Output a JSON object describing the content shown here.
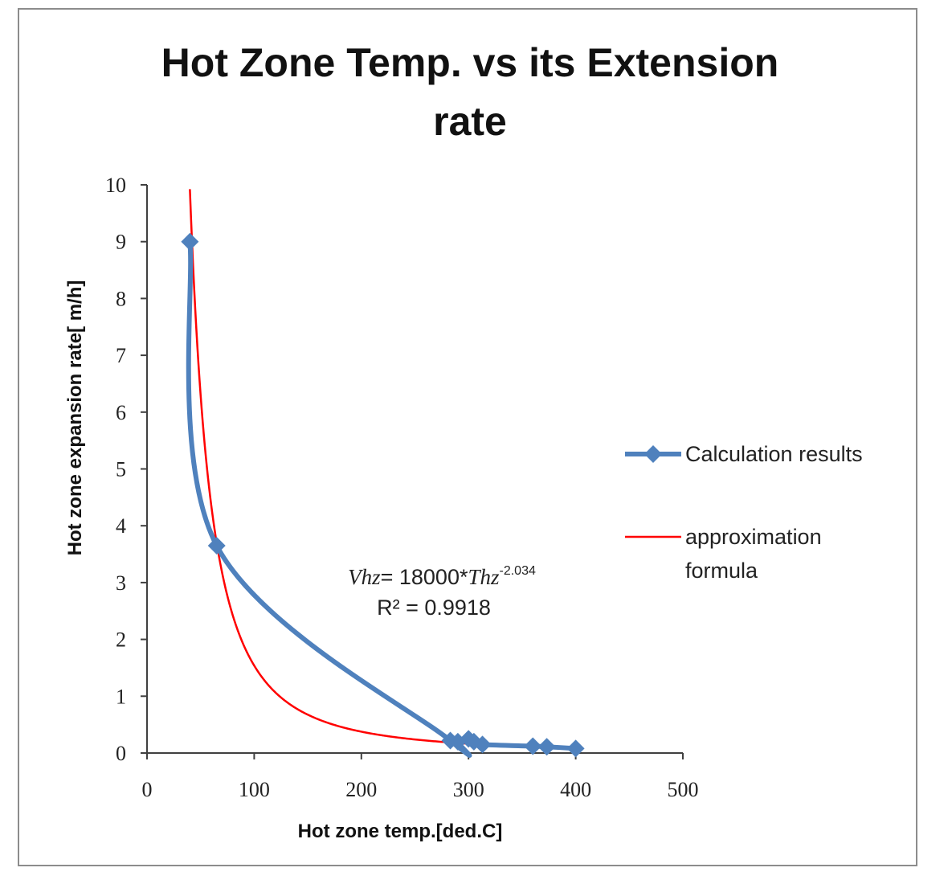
{
  "chart_data": {
    "type": "scatter",
    "title_lines": [
      "Hot Zone Temp. vs its Extension",
      "rate"
    ],
    "xlabel": "Hot zone temp.[ded.C]",
    "ylabel": "Hot zone expansion rate[ m/h]",
    "xlim": [
      0,
      500
    ],
    "ylim": [
      0,
      10
    ],
    "x_ticks": [
      "0",
      "100",
      "200",
      "300",
      "400",
      "500"
    ],
    "y_ticks": [
      "0",
      "1",
      "2",
      "3",
      "4",
      "5",
      "6",
      "7",
      "8",
      "9",
      "10"
    ],
    "grid": false,
    "legend_position": "right",
    "series": [
      {
        "name": "Calculation results",
        "style": "smooth line with diamond markers",
        "color": "#4f81bd",
        "x": [
          40,
          65,
          283,
          290,
          300,
          305,
          313,
          360,
          373,
          400
        ],
        "y": [
          9.0,
          3.65,
          0.22,
          0.2,
          0.25,
          0.2,
          0.15,
          0.12,
          0.11,
          0.08
        ]
      },
      {
        "name": "approximation",
        "legend_extra": "formula",
        "style": "line",
        "color": "#ff0000",
        "formula": {
          "coefficient": 18000,
          "exponent": -2.034
        },
        "x_range": [
          40,
          398
        ]
      }
    ],
    "annotation": {
      "lhs": "Vhz",
      "middle": "= 18000*",
      "var": "Thz",
      "exponent": "-2.034",
      "r2_label": "R² = 0.9918"
    }
  }
}
